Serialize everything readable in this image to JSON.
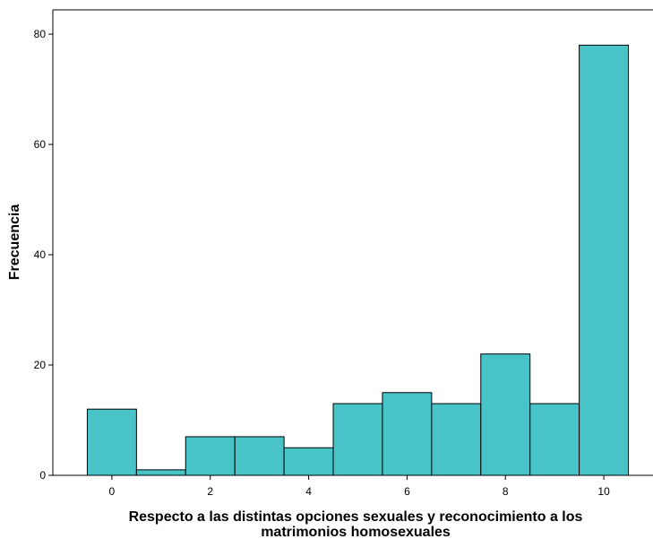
{
  "chart_data": {
    "type": "bar",
    "chart_kind": "histogram",
    "categories": [
      "0",
      "1",
      "2",
      "3",
      "4",
      "5",
      "6",
      "7",
      "8",
      "9",
      "10"
    ],
    "values": [
      12,
      1,
      7,
      7,
      5,
      13,
      15,
      13,
      22,
      13,
      78
    ],
    "xlabel_line1": "Respecto a las distintas opciones sexuales y reconocimiento a los",
    "xlabel_line2": "matrimonios homosexuales",
    "ylabel": "Frecuencia",
    "xlim": [
      -1.2,
      11.0
    ],
    "ylim": [
      0,
      84.4
    ],
    "x_ticks": [
      0,
      2,
      4,
      6,
      8,
      10
    ],
    "y_ticks": [
      0,
      20,
      40,
      60,
      80
    ],
    "grid": false,
    "legend": "none",
    "bar_color": "#48c4c8",
    "bar_edge_color": "#000000"
  }
}
